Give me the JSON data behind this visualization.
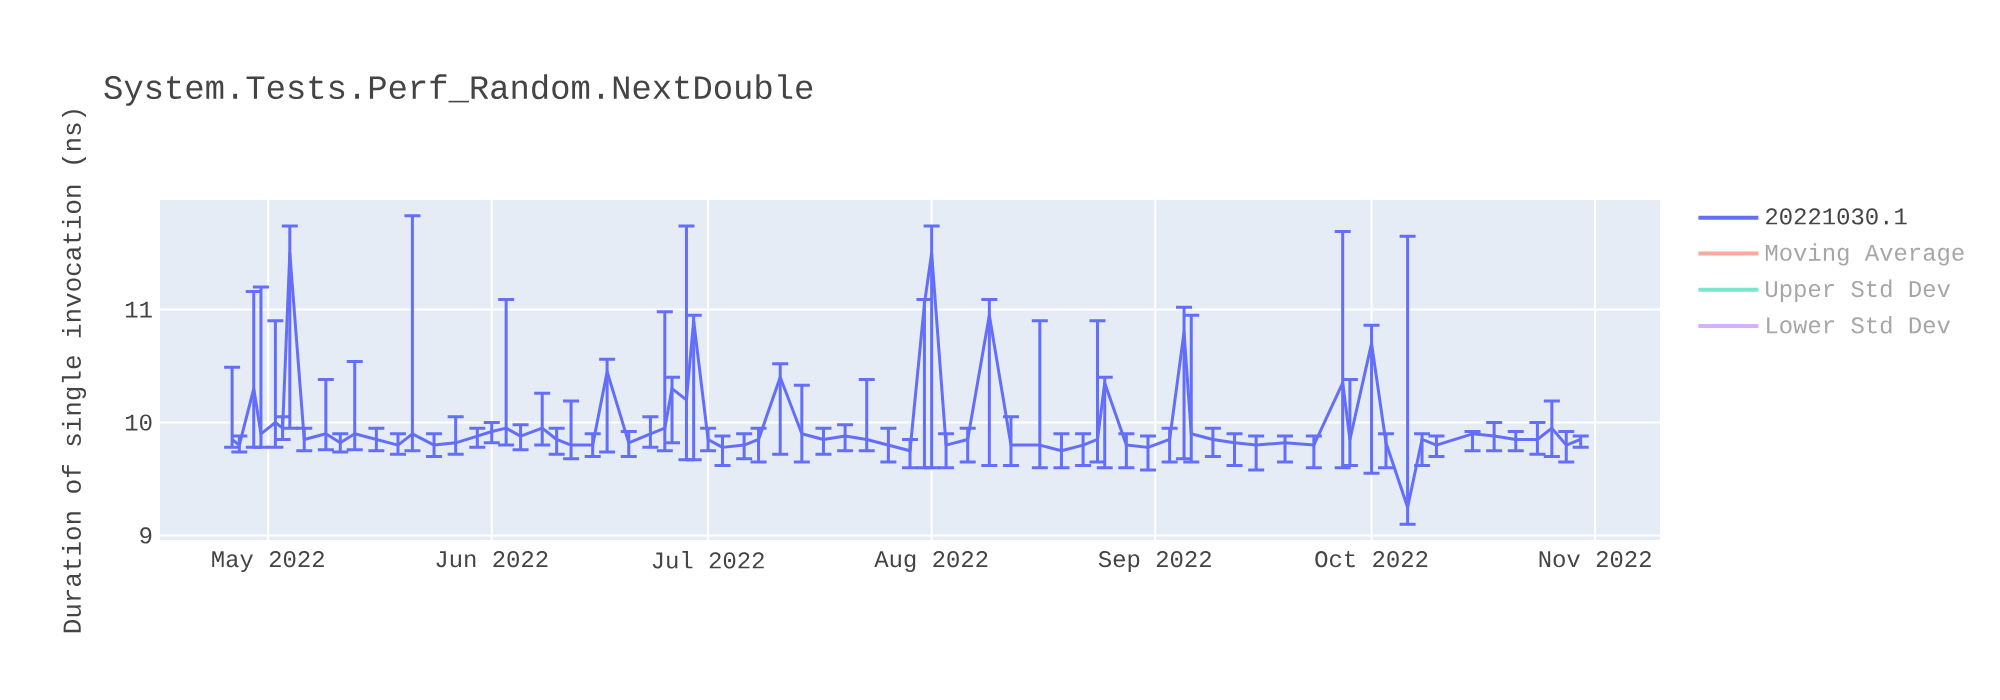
{
  "chart_data": {
    "type": "line",
    "title": "System.Tests.Perf_Random.NextDouble",
    "ylabel": "Duration of single invocation (ns)",
    "x": [
      "2022-04-26",
      "2022-04-27",
      "2022-04-29",
      "2022-04-30",
      "2022-05-02",
      "2022-05-03",
      "2022-05-04",
      "2022-05-06",
      "2022-05-09",
      "2022-05-11",
      "2022-05-13",
      "2022-05-16",
      "2022-05-19",
      "2022-05-21",
      "2022-05-24",
      "2022-05-27",
      "2022-05-30",
      "2022-06-01",
      "2022-06-03",
      "2022-06-05",
      "2022-06-08",
      "2022-06-10",
      "2022-06-12",
      "2022-06-15",
      "2022-06-17",
      "2022-06-20",
      "2022-06-23",
      "2022-06-25",
      "2022-06-26",
      "2022-06-28",
      "2022-06-29",
      "2022-07-01",
      "2022-07-03",
      "2022-07-06",
      "2022-07-08",
      "2022-07-11",
      "2022-07-14",
      "2022-07-17",
      "2022-07-20",
      "2022-07-23",
      "2022-07-26",
      "2022-07-29",
      "2022-07-31",
      "2022-08-01",
      "2022-08-03",
      "2022-08-06",
      "2022-08-09",
      "2022-08-12",
      "2022-08-16",
      "2022-08-19",
      "2022-08-22",
      "2022-08-24",
      "2022-08-25",
      "2022-08-28",
      "2022-08-31",
      "2022-09-03",
      "2022-09-05",
      "2022-09-06",
      "2022-09-09",
      "2022-09-12",
      "2022-09-15",
      "2022-09-19",
      "2022-09-23",
      "2022-09-27",
      "2022-09-28",
      "2022-10-01",
      "2022-10-03",
      "2022-10-06",
      "2022-10-08",
      "2022-10-10",
      "2022-10-15",
      "2022-10-18",
      "2022-10-21",
      "2022-10-24",
      "2022-10-26",
      "2022-10-28",
      "2022-10-30"
    ],
    "series": [
      {
        "name": "20221030.1",
        "color": "#636efa",
        "values": [
          9.85,
          9.8,
          10.3,
          9.9,
          10.0,
          9.95,
          11.5,
          9.85,
          9.9,
          9.82,
          9.9,
          9.85,
          9.8,
          9.9,
          9.8,
          9.82,
          9.88,
          9.92,
          9.95,
          9.88,
          9.95,
          9.85,
          9.8,
          9.8,
          10.45,
          9.82,
          9.9,
          9.95,
          10.3,
          10.2,
          10.9,
          9.85,
          9.78,
          9.8,
          9.85,
          10.4,
          9.9,
          9.85,
          9.88,
          9.85,
          9.8,
          9.75,
          11.05,
          11.5,
          9.8,
          9.85,
          10.95,
          9.8,
          9.8,
          9.75,
          9.8,
          9.85,
          10.35,
          9.8,
          9.78,
          9.85,
          10.8,
          9.9,
          9.85,
          9.82,
          9.8,
          9.82,
          9.8,
          10.35,
          9.85,
          10.7,
          9.82,
          9.25,
          9.85,
          9.8,
          9.9,
          9.88,
          9.85,
          9.85,
          9.95,
          9.8,
          9.85
        ],
        "errors": [
          [
            9.78,
            10.49
          ],
          [
            9.74,
            9.88
          ],
          [
            9.78,
            11.16
          ],
          [
            9.78,
            11.2
          ],
          [
            9.78,
            10.9
          ],
          [
            9.85,
            10.05
          ],
          [
            9.95,
            11.74
          ],
          [
            9.75,
            9.95
          ],
          [
            9.76,
            10.38
          ],
          [
            9.74,
            9.9
          ],
          [
            9.76,
            10.54
          ],
          [
            9.75,
            9.95
          ],
          [
            9.72,
            9.9
          ],
          [
            9.75,
            11.83
          ],
          [
            9.7,
            9.9
          ],
          [
            9.72,
            10.05
          ],
          [
            9.78,
            9.95
          ],
          [
            9.82,
            10.0
          ],
          [
            9.8,
            11.09
          ],
          [
            9.76,
            9.98
          ],
          [
            9.8,
            10.26
          ],
          [
            9.72,
            9.95
          ],
          [
            9.68,
            10.19
          ],
          [
            9.7,
            9.9
          ],
          [
            9.74,
            10.56
          ],
          [
            9.7,
            9.92
          ],
          [
            9.78,
            10.05
          ],
          [
            9.75,
            10.98
          ],
          [
            9.82,
            10.4
          ],
          [
            9.67,
            11.74
          ],
          [
            9.67,
            10.95
          ],
          [
            9.75,
            9.95
          ],
          [
            9.62,
            9.88
          ],
          [
            9.68,
            9.9
          ],
          [
            9.65,
            9.95
          ],
          [
            9.72,
            10.52
          ],
          [
            9.65,
            10.33
          ],
          [
            9.72,
            9.95
          ],
          [
            9.75,
            9.98
          ],
          [
            9.75,
            10.38
          ],
          [
            9.65,
            9.95
          ],
          [
            9.6,
            9.85
          ],
          [
            9.6,
            11.09
          ],
          [
            9.6,
            11.74
          ],
          [
            9.6,
            9.9
          ],
          [
            9.65,
            9.95
          ],
          [
            9.62,
            11.09
          ],
          [
            9.62,
            10.05
          ],
          [
            9.6,
            10.9
          ],
          [
            9.6,
            9.9
          ],
          [
            9.62,
            9.9
          ],
          [
            9.65,
            10.9
          ],
          [
            9.6,
            10.4
          ],
          [
            9.6,
            9.9
          ],
          [
            9.58,
            9.88
          ],
          [
            9.65,
            9.95
          ],
          [
            9.68,
            11.02
          ],
          [
            9.65,
            10.95
          ],
          [
            9.7,
            9.95
          ],
          [
            9.62,
            9.9
          ],
          [
            9.58,
            9.88
          ],
          [
            9.65,
            9.88
          ],
          [
            9.6,
            9.88
          ],
          [
            9.6,
            11.69
          ],
          [
            9.62,
            10.38
          ],
          [
            9.55,
            10.86
          ],
          [
            9.6,
            9.9
          ],
          [
            9.1,
            11.65
          ],
          [
            9.62,
            9.9
          ],
          [
            9.7,
            9.88
          ],
          [
            9.75,
            9.92
          ],
          [
            9.75,
            10.0
          ],
          [
            9.75,
            9.92
          ],
          [
            9.72,
            10.0
          ],
          [
            9.7,
            10.19
          ],
          [
            9.65,
            9.92
          ],
          [
            9.78,
            9.88
          ]
        ]
      },
      {
        "name": "Moving Average",
        "color": "#f7aa9d",
        "values": [
          null,
          null,
          null,
          null,
          null,
          null,
          null,
          null,
          null,
          null,
          null,
          null,
          null,
          null,
          null,
          null,
          null,
          null,
          null,
          null,
          null,
          null,
          null,
          null,
          null,
          null,
          null,
          null,
          null,
          null,
          null,
          null,
          null,
          null,
          null,
          null,
          null,
          null,
          null,
          null,
          null,
          null,
          null,
          null,
          null,
          null,
          null,
          null,
          null,
          null,
          null,
          null,
          null,
          null,
          null,
          null,
          null,
          null,
          null,
          null,
          null,
          null,
          null,
          null,
          null,
          null,
          null,
          null,
          null,
          null,
          null,
          null,
          null,
          null,
          null,
          null,
          null
        ]
      },
      {
        "name": "Upper Std Dev",
        "color": "#7fe5ca",
        "values": [
          null,
          null,
          null,
          null,
          null,
          null,
          null,
          null,
          null,
          null,
          null,
          null,
          null,
          null,
          null,
          null,
          null,
          null,
          null,
          null,
          null,
          null,
          null,
          null,
          null,
          null,
          null,
          null,
          null,
          null,
          null,
          null,
          null,
          null,
          null,
          null,
          null,
          null,
          null,
          null,
          null,
          null,
          null,
          null,
          null,
          null,
          null,
          null,
          null,
          null,
          null,
          null,
          null,
          null,
          null,
          null,
          null,
          null,
          null,
          null,
          null,
          null,
          null,
          null,
          null,
          null,
          null,
          null,
          null,
          null,
          null,
          null,
          null,
          null,
          null,
          null,
          null
        ]
      },
      {
        "name": "Lower Std Dev",
        "color": "#d5b1fc",
        "values": [
          null,
          null,
          null,
          null,
          null,
          null,
          null,
          null,
          null,
          null,
          null,
          null,
          null,
          null,
          null,
          null,
          null,
          null,
          null,
          null,
          null,
          null,
          null,
          null,
          null,
          null,
          null,
          null,
          null,
          null,
          null,
          null,
          null,
          null,
          null,
          null,
          null,
          null,
          null,
          null,
          null,
          null,
          null,
          null,
          null,
          null,
          null,
          null,
          null,
          null,
          null,
          null,
          null,
          null,
          null,
          null,
          null,
          null,
          null,
          null,
          null,
          null,
          null,
          null,
          null,
          null,
          null,
          null,
          null,
          null,
          null,
          null,
          null,
          null,
          null,
          null,
          null
        ]
      }
    ],
    "xlim": [
      "2022-04-16",
      "2022-11-10"
    ],
    "xticks": [
      {
        "value": "2022-05-01",
        "label": "May 2022"
      },
      {
        "value": "2022-06-01",
        "label": "Jun 2022"
      },
      {
        "value": "2022-07-01",
        "label": "Jul 2022"
      },
      {
        "value": "2022-08-01",
        "label": "Aug 2022"
      },
      {
        "value": "2022-09-01",
        "label": "Sep 2022"
      },
      {
        "value": "2022-10-01",
        "label": "Oct 2022"
      },
      {
        "value": "2022-11-01",
        "label": "Nov 2022"
      }
    ],
    "ylim": [
      8.96,
      11.97
    ],
    "yticks": [
      9,
      10,
      11
    ],
    "grid": true,
    "legend": "top right",
    "marker": "none",
    "line_style": "solid"
  }
}
